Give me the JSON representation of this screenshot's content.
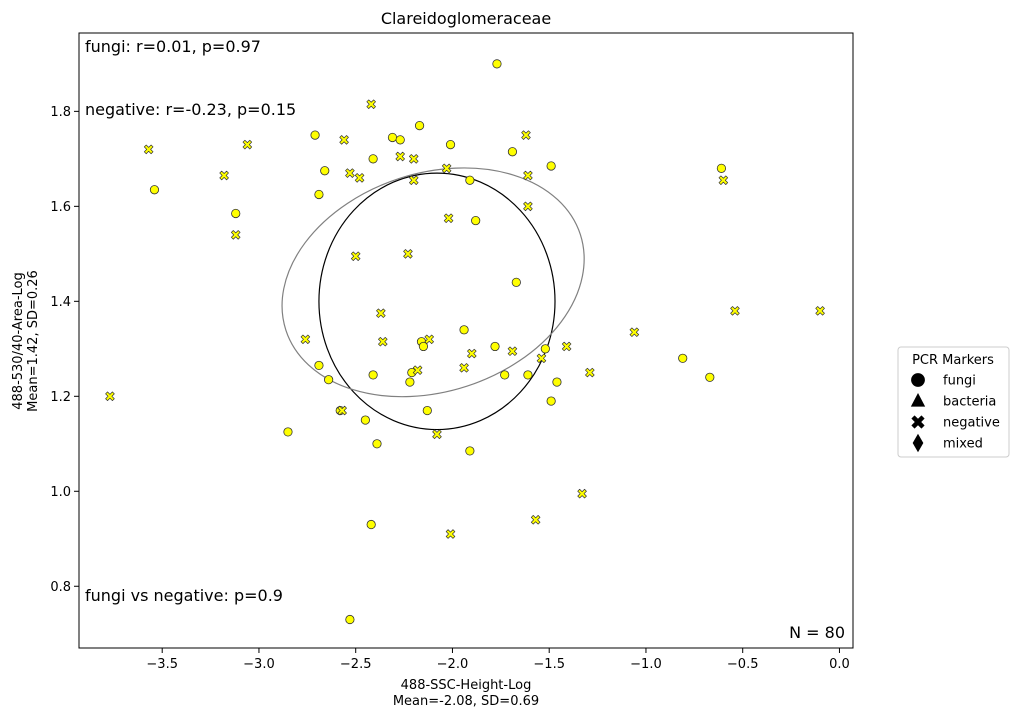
{
  "chart_data": {
    "type": "scatter",
    "title": "Clareidoglomeraceae",
    "xlabel": "488-SSC-Height-Log",
    "xlabel_stats": "Mean=-2.08, SD=0.69",
    "ylabel": "488-530/40-Area-Log",
    "ylabel_stats": "Mean=1.42, SD=0.26",
    "xlim": [
      -3.93,
      0.07
    ],
    "ylim": [
      0.67,
      1.965
    ],
    "xticks": [
      -3.5,
      -3.0,
      -2.5,
      -2.0,
      -1.5,
      -1.0,
      -0.5,
      0.0
    ],
    "xtick_labels": [
      "−3.5",
      "−3.0",
      "−2.5",
      "−2.0",
      "−1.5",
      "−1.0",
      "−0.5",
      "0.0"
    ],
    "yticks": [
      0.8,
      1.0,
      1.2,
      1.4,
      1.6,
      1.8
    ],
    "ytick_labels": [
      "0.8",
      "1.0",
      "1.2",
      "1.4",
      "1.6",
      "1.8"
    ],
    "grid": false,
    "annotations": {
      "fungi_stats": "fungi: r=0.01, p=0.97",
      "negative_stats": "negative: r=-0.23, p=0.15",
      "comparison": "fungi vs negative: p=0.9",
      "n_label": "N = 80"
    },
    "point_color": "#ffff00",
    "point_edge_color": "#333333",
    "legend": {
      "title": "PCR Markers",
      "placement": "outside-right",
      "entries": [
        {
          "label": "fungi",
          "marker": "circle"
        },
        {
          "label": "bacteria",
          "marker": "triangle"
        },
        {
          "label": "negative",
          "marker": "x"
        },
        {
          "label": "mixed",
          "marker": "diamond"
        }
      ]
    },
    "series": [
      {
        "marker": "circle",
        "points": [
          [
            -1.77,
            1.9
          ],
          [
            -2.17,
            1.77
          ],
          [
            -2.71,
            1.75
          ],
          [
            -2.31,
            1.745
          ],
          [
            -2.27,
            1.74
          ],
          [
            -2.01,
            1.73
          ],
          [
            -1.69,
            1.715
          ],
          [
            -2.41,
            1.7
          ],
          [
            -1.49,
            1.685
          ],
          [
            -0.61,
            1.68
          ],
          [
            -2.66,
            1.675
          ],
          [
            -1.91,
            1.655
          ],
          [
            -2.69,
            1.625
          ],
          [
            -3.54,
            1.635
          ],
          [
            -3.12,
            1.585
          ],
          [
            -1.88,
            1.57
          ],
          [
            -1.67,
            1.44
          ],
          [
            -1.94,
            1.34
          ],
          [
            -2.16,
            1.315
          ],
          [
            -2.15,
            1.305
          ],
          [
            -1.78,
            1.305
          ],
          [
            -1.52,
            1.3
          ],
          [
            -2.69,
            1.265
          ],
          [
            -2.21,
            1.25
          ],
          [
            -1.73,
            1.245
          ],
          [
            -1.61,
            1.245
          ],
          [
            -2.41,
            1.245
          ],
          [
            -0.81,
            1.28
          ],
          [
            -0.67,
            1.24
          ],
          [
            -2.64,
            1.235
          ],
          [
            -1.46,
            1.23
          ],
          [
            -2.22,
            1.23
          ],
          [
            -1.49,
            1.19
          ],
          [
            -2.58,
            1.17
          ],
          [
            -2.13,
            1.17
          ],
          [
            -2.45,
            1.15
          ],
          [
            -2.85,
            1.125
          ],
          [
            -2.39,
            1.1
          ],
          [
            -1.91,
            1.085
          ],
          [
            -2.42,
            0.93
          ],
          [
            -2.53,
            0.73
          ]
        ]
      },
      {
        "marker": "x",
        "points": [
          [
            -2.42,
            1.815
          ],
          [
            -1.62,
            1.75
          ],
          [
            -2.56,
            1.74
          ],
          [
            -3.57,
            1.72
          ],
          [
            -3.06,
            1.73
          ],
          [
            -2.27,
            1.705
          ],
          [
            -2.2,
            1.7
          ],
          [
            -2.53,
            1.67
          ],
          [
            -2.03,
            1.68
          ],
          [
            -3.18,
            1.665
          ],
          [
            -1.61,
            1.665
          ],
          [
            -2.48,
            1.66
          ],
          [
            -2.2,
            1.655
          ],
          [
            -0.6,
            1.655
          ],
          [
            -1.61,
            1.6
          ],
          [
            -2.02,
            1.575
          ],
          [
            -3.12,
            1.54
          ],
          [
            -2.23,
            1.5
          ],
          [
            -2.5,
            1.495
          ],
          [
            -0.54,
            1.38
          ],
          [
            -0.1,
            1.38
          ],
          [
            -2.37,
            1.375
          ],
          [
            -1.06,
            1.335
          ],
          [
            -2.12,
            1.32
          ],
          [
            -2.76,
            1.32
          ],
          [
            -2.36,
            1.315
          ],
          [
            -1.41,
            1.305
          ],
          [
            -1.69,
            1.295
          ],
          [
            -1.9,
            1.29
          ],
          [
            -1.54,
            1.28
          ],
          [
            -1.94,
            1.26
          ],
          [
            -2.18,
            1.255
          ],
          [
            -1.29,
            1.25
          ],
          [
            -3.77,
            1.2
          ],
          [
            -2.57,
            1.17
          ],
          [
            -2.08,
            1.12
          ],
          [
            -1.33,
            0.995
          ],
          [
            -1.57,
            0.94
          ],
          [
            -2.01,
            0.91
          ]
        ]
      }
    ],
    "ellipses": [
      {
        "label": "fungi",
        "center": [
          -2.08,
          1.4
        ],
        "rx": 0.61,
        "ry": 0.27,
        "angle_deg": 0,
        "color": "#000000"
      },
      {
        "label": "negative",
        "center": [
          -2.1,
          1.44
        ],
        "rx": 0.8,
        "ry": 0.23,
        "angle_deg": -18,
        "color": "#808080"
      }
    ]
  }
}
